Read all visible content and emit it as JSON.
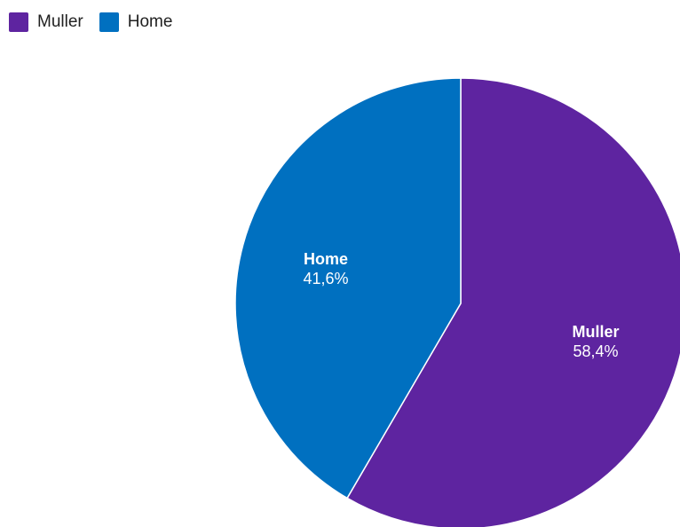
{
  "chart_data": {
    "type": "pie",
    "legend_position": "top-left",
    "slices": [
      {
        "label": "Muller",
        "value": 58.4,
        "value_label": "58,4%",
        "color": "#5e24a0"
      },
      {
        "label": "Home",
        "value": 41.6,
        "value_label": "41,6%",
        "color": "#0070c0"
      }
    ]
  }
}
